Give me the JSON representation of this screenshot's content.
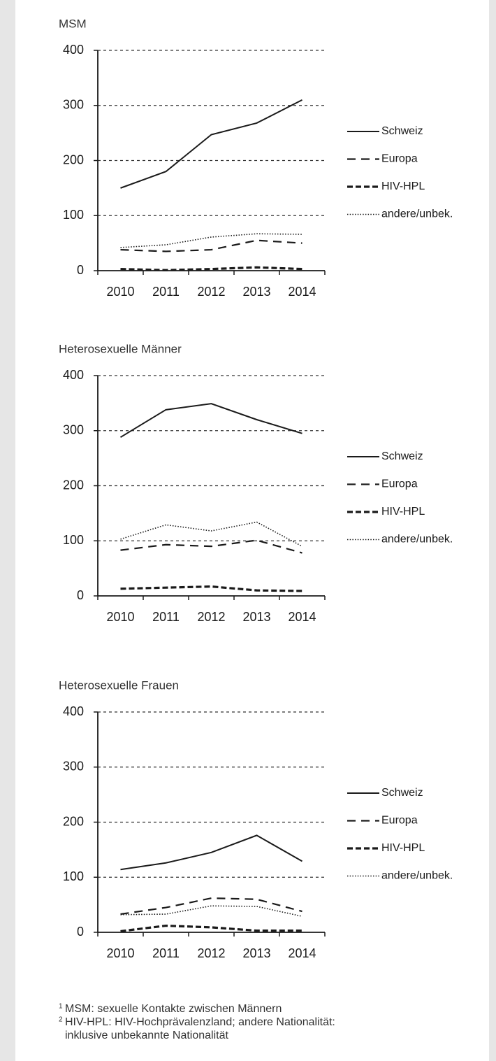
{
  "chart_data": [
    {
      "type": "line",
      "title": "MSM",
      "categories": [
        "2010",
        "2011",
        "2012",
        "2013",
        "2014"
      ],
      "series": [
        {
          "name": "Schweiz",
          "color": "#1a1a1a",
          "values": [
            150,
            180,
            247,
            268,
            310
          ]
        },
        {
          "name": "Europa",
          "color": "#1a1a1a",
          "values": [
            38,
            35,
            38,
            55,
            50
          ]
        },
        {
          "name": "HIV-HPL",
          "color": "#1a1a1a",
          "values": [
            3,
            1,
            3,
            6,
            3
          ]
        },
        {
          "name": "andere/unbek.",
          "color": "#1a1a1a",
          "values": [
            42,
            47,
            61,
            67,
            66
          ]
        }
      ],
      "ylim": [
        0,
        400
      ],
      "yticks": [
        0,
        100,
        200,
        300,
        400
      ],
      "grid": true,
      "legend": "right"
    },
    {
      "type": "line",
      "title": "Heterosexuelle Männer",
      "categories": [
        "2010",
        "2011",
        "2012",
        "2013",
        "2014"
      ],
      "series": [
        {
          "name": "Schweiz",
          "color": "#1a1a1a",
          "values": [
            288,
            338,
            349,
            320,
            295
          ]
        },
        {
          "name": "Europa",
          "color": "#1a1a1a",
          "values": [
            83,
            93,
            90,
            101,
            78
          ]
        },
        {
          "name": "HIV-HPL",
          "color": "#1a1a1a",
          "values": [
            13,
            15,
            17,
            10,
            9
          ]
        },
        {
          "name": "andere/unbek.",
          "color": "#1a1a1a",
          "values": [
            103,
            129,
            118,
            134,
            90
          ]
        }
      ],
      "ylim": [
        0,
        400
      ],
      "yticks": [
        0,
        100,
        200,
        300,
        400
      ],
      "grid": true,
      "legend": "right"
    },
    {
      "type": "line",
      "title": "Heterosexuelle Frauen",
      "categories": [
        "2010",
        "2011",
        "2012",
        "2013",
        "2014"
      ],
      "series": [
        {
          "name": "Schweiz",
          "color": "#1a1a1a",
          "values": [
            114,
            126,
            145,
            176,
            129
          ]
        },
        {
          "name": "Europa",
          "color": "#1a1a1a",
          "values": [
            33,
            45,
            62,
            60,
            38
          ]
        },
        {
          "name": "HIV-HPL",
          "color": "#1a1a1a",
          "values": [
            2,
            12,
            9,
            3,
            3
          ]
        },
        {
          "name": "andere/unbek.",
          "color": "#1a1a1a",
          "values": [
            32,
            33,
            48,
            47,
            29
          ]
        }
      ],
      "ylim": [
        0,
        400
      ],
      "yticks": [
        0,
        100,
        200,
        300,
        400
      ],
      "grid": true,
      "legend": "right"
    }
  ],
  "notes": [
    {
      "marker": "1",
      "lines": [
        "MSM: sexuelle Kontakte zwischen Männern"
      ]
    },
    {
      "marker": "2",
      "lines": [
        "HIV-HPL: HIV-Hochprävalenzland; andere Nationalität:",
        "inklusive unbekannte Nationalität"
      ]
    }
  ]
}
